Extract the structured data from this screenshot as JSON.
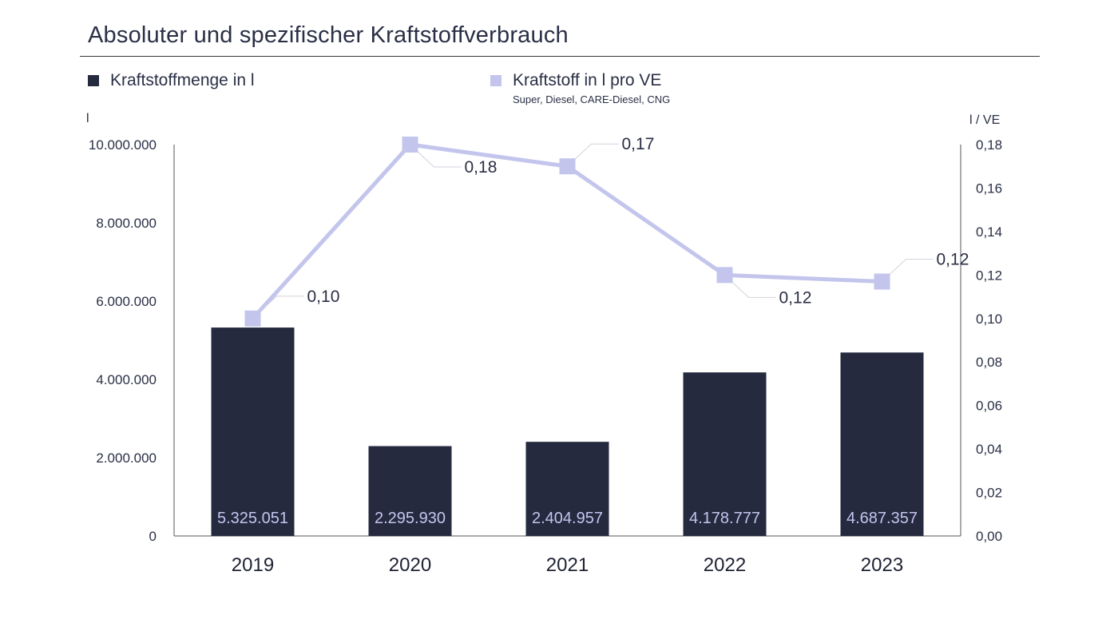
{
  "chart_data": {
    "type": "bar+line",
    "title": "Absoluter und spezifischer Kraftstoffverbrauch",
    "categories": [
      "2019",
      "2020",
      "2021",
      "2022",
      "2023"
    ],
    "series": [
      {
        "name": "Kraftstoffmenge in l",
        "type": "bar",
        "axis": "left",
        "color": "#252a3f",
        "values": [
          5325051,
          2295930,
          2404957,
          4178777,
          4687357
        ],
        "labels": [
          "5.325.051",
          "2.295.930",
          "2.404.957",
          "4.178.777",
          "4.687.357"
        ]
      },
      {
        "name": "Kraftstoff in l pro VE",
        "subtitle": "Super, Diesel, CARE-Diesel, CNG",
        "type": "line",
        "axis": "right",
        "color": "#c3c5ec",
        "values": [
          0.1,
          0.18,
          0.17,
          0.12,
          0.117
        ],
        "labels": [
          "0,10",
          "0,18",
          "0,17",
          "0,12",
          "0,12"
        ]
      }
    ],
    "y_left": {
      "label": "l",
      "range": [
        0,
        10000000
      ],
      "ticks": [
        0,
        2000000,
        4000000,
        6000000,
        8000000,
        10000000
      ],
      "tick_labels": [
        "0",
        "2.000.000",
        "4.000.000",
        "6.000.000",
        "8.000.000",
        "10.000.000"
      ]
    },
    "y_right": {
      "label": "l / VE",
      "range": [
        0,
        0.18
      ],
      "ticks": [
        0,
        0.02,
        0.04,
        0.06,
        0.08,
        0.1,
        0.12,
        0.14,
        0.16,
        0.18
      ],
      "tick_labels": [
        "0,00",
        "0,02",
        "0,04",
        "0,06",
        "0,08",
        "0,10",
        "0,12",
        "0,14",
        "0,16",
        "0,18"
      ]
    },
    "grid": false,
    "legend_position": "top-left"
  }
}
